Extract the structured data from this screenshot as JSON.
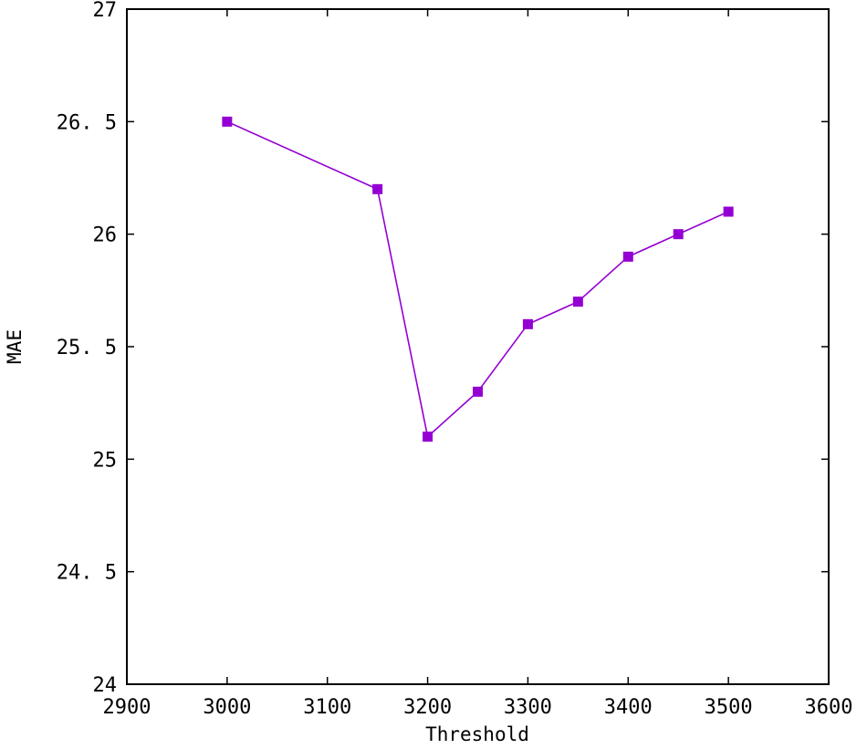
{
  "chart_data": {
    "type": "line",
    "title": "",
    "xlabel": "Threshold",
    "ylabel": "MAE",
    "xlim": [
      2900,
      3600
    ],
    "ylim": [
      24,
      27
    ],
    "x_ticks": [
      2900,
      3000,
      3100,
      3200,
      3300,
      3400,
      3500,
      3600
    ],
    "x_tick_labels": [
      "2900",
      "3000",
      "3100",
      "3200",
      "3300",
      "3400",
      "3500",
      "3600"
    ],
    "y_ticks": [
      24,
      24.5,
      25,
      25.5,
      26,
      26.5,
      27
    ],
    "y_tick_labels": [
      "24",
      "24. 5",
      "25",
      "25. 5",
      "26",
      "26. 5",
      "27"
    ],
    "grid": false,
    "legend": "none",
    "series": [
      {
        "color": "#9400d3",
        "marker": "square",
        "x": [
          3000,
          3150,
          3200,
          3250,
          3300,
          3350,
          3400,
          3450,
          3500
        ],
        "y": [
          26.5,
          26.2,
          25.1,
          25.3,
          25.6,
          25.7,
          25.9,
          26.0,
          26.1
        ]
      }
    ]
  }
}
